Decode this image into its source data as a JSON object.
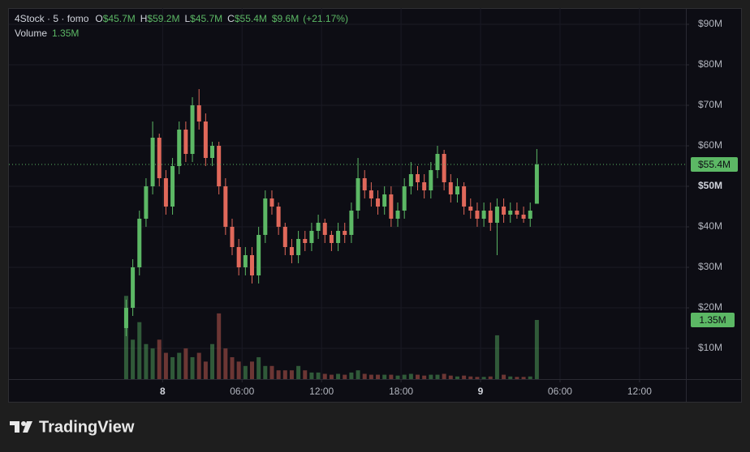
{
  "chart_data": {
    "type": "candlestick",
    "symbol": "4Stock · 5 · fomo",
    "ohlc_legend": [
      {
        "key": "O",
        "label": "$45.7M"
      },
      {
        "key": "H",
        "label": "$59.2M"
      },
      {
        "key": "L",
        "label": "$45.7M"
      },
      {
        "key": "C",
        "label": "$55.4M"
      }
    ],
    "change_label": "$9.6M",
    "change_pct_label": "(+21.17%)",
    "volume_title": "Volume",
    "last_price": {
      "value": 55.4,
      "label": "$55.4M"
    },
    "last_volume": {
      "value": 1.35,
      "label": "1.35M"
    },
    "up_color": "#5cb865",
    "down_color": "#e0685a",
    "x": [
      -2.75,
      -2.25,
      -1.75,
      -1.25,
      -0.75,
      -0.25,
      0.25,
      0.75,
      1.25,
      1.75,
      2.25,
      2.75,
      3.25,
      3.75,
      4.25,
      4.75,
      5.25,
      5.75,
      6.25,
      6.75,
      7.25,
      7.75,
      8.25,
      8.75,
      9.25,
      9.75,
      10.25,
      10.75,
      11.25,
      11.75,
      12.25,
      12.75,
      13.25,
      13.75,
      14.25,
      14.75,
      15.25,
      15.75,
      16.25,
      16.75,
      17.25,
      17.75,
      18.25,
      18.75,
      19.25,
      19.75,
      20.25,
      20.75,
      21.25,
      21.75,
      22.25,
      22.75,
      23.25,
      23.75,
      24.25,
      24.75,
      25.25,
      25.75,
      26.25,
      26.75,
      27.25,
      27.75,
      28.25
    ],
    "open": [
      15,
      20,
      30,
      42,
      50,
      62,
      52,
      45,
      55,
      64,
      58,
      70,
      66,
      57,
      60,
      50,
      40,
      35,
      30,
      33,
      28,
      38,
      47,
      45,
      40,
      35,
      33,
      37,
      36,
      39,
      41,
      38,
      36,
      39,
      38,
      44,
      52,
      49,
      47,
      45,
      48,
      42,
      44,
      50,
      53,
      51,
      49,
      54,
      58,
      51,
      48,
      50,
      45,
      44,
      42,
      44,
      41,
      45,
      43,
      44,
      43,
      42,
      45.7
    ],
    "high": [
      22,
      32,
      44,
      52,
      66,
      63,
      54,
      57,
      66,
      66,
      72,
      74,
      68,
      61,
      61,
      52,
      42,
      37,
      35,
      35,
      40,
      49,
      49,
      46,
      41,
      37,
      39,
      39,
      41,
      43,
      42,
      39,
      41,
      41,
      46,
      57,
      54,
      51,
      49,
      50,
      50,
      46,
      52,
      56,
      55,
      53,
      56,
      60,
      59,
      53,
      52,
      51,
      47,
      46,
      46,
      46,
      47,
      47,
      46,
      46,
      45,
      46,
      59.2
    ],
    "low": [
      13,
      18,
      28,
      40,
      48,
      50,
      43,
      43,
      53,
      56,
      56,
      64,
      55,
      55,
      48,
      38,
      33,
      28,
      28,
      26,
      26,
      36,
      43,
      38,
      33,
      31,
      31,
      34,
      34,
      37,
      36,
      34,
      34,
      36,
      36,
      42,
      47,
      45,
      43,
      43,
      40,
      40,
      42,
      48,
      49,
      47,
      47,
      52,
      49,
      46,
      46,
      43,
      42,
      40,
      40,
      39,
      33,
      41,
      41,
      42,
      41,
      40,
      45.7
    ],
    "close": [
      20,
      30,
      42,
      50,
      62,
      52,
      45,
      55,
      64,
      58,
      70,
      66,
      57,
      60,
      50,
      40,
      35,
      30,
      33,
      28,
      38,
      47,
      45,
      40,
      35,
      33,
      37,
      36,
      39,
      41,
      38,
      36,
      39,
      38,
      44,
      52,
      49,
      47,
      45,
      48,
      42,
      44,
      50,
      53,
      51,
      49,
      54,
      58,
      51,
      48,
      50,
      45,
      44,
      42,
      44,
      41,
      45,
      43,
      44,
      43,
      42,
      44,
      55.4
    ],
    "volume": [
      1.9,
      0.9,
      1.3,
      0.8,
      0.7,
      0.9,
      0.6,
      0.5,
      0.6,
      0.7,
      0.5,
      0.6,
      0.4,
      0.8,
      1.5,
      0.7,
      0.5,
      0.4,
      0.3,
      0.4,
      0.5,
      0.3,
      0.3,
      0.2,
      0.2,
      0.2,
      0.3,
      0.2,
      0.15,
      0.15,
      0.12,
      0.1,
      0.12,
      0.1,
      0.15,
      0.2,
      0.12,
      0.1,
      0.1,
      0.1,
      0.1,
      0.08,
      0.1,
      0.12,
      0.1,
      0.08,
      0.1,
      0.1,
      0.12,
      0.08,
      0.06,
      0.08,
      0.06,
      0.05,
      0.05,
      0.06,
      1.0,
      0.1,
      0.06,
      0.05,
      0.05,
      0.06,
      1.35
    ],
    "xlim": [
      -11.6,
      39.5
    ],
    "xticks": [
      {
        "value": 0,
        "label": "8",
        "bold": true
      },
      {
        "value": 6,
        "label": "06:00"
      },
      {
        "value": 12,
        "label": "12:00"
      },
      {
        "value": 18,
        "label": "18:00"
      },
      {
        "value": 24,
        "label": "9",
        "bold": true
      },
      {
        "value": 30,
        "label": "06:00"
      },
      {
        "value": 36,
        "label": "12:00"
      }
    ],
    "ylim": [
      2.4,
      94
    ],
    "yticks": [
      {
        "value": 10,
        "label": "$10M"
      },
      {
        "value": 20,
        "label": "$20M"
      },
      {
        "value": 30,
        "label": "$30M"
      },
      {
        "value": 40,
        "label": "$40M"
      },
      {
        "value": 50,
        "label": "$50M",
        "bold": true
      },
      {
        "value": 60,
        "label": "$60M"
      },
      {
        "value": 70,
        "label": "$70M"
      },
      {
        "value": 80,
        "label": "$80M"
      },
      {
        "value": 90,
        "label": "$90M"
      }
    ],
    "y2lim": [
      0,
      8.47
    ],
    "grid": true,
    "brand": "TradingView"
  }
}
